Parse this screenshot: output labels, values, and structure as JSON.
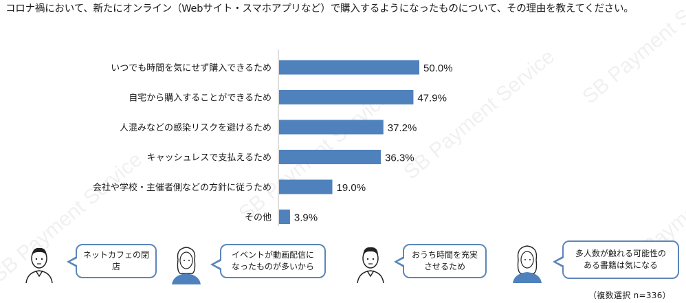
{
  "watermark_text": "SB Payment Service",
  "question": "コロナ禍において、新たにオンライン（Webサイト・スマホアプリなど）で購入するようになったものについて、その理由を教えてください。",
  "chart_data": {
    "type": "bar",
    "orientation": "horizontal",
    "title": "",
    "categories": [
      "いつでも時間を気にせず購入できるため",
      "自宅から購入することができるため",
      "人混みなどの感染リスクを避けるため",
      "キャッシュレスで支払えるため",
      "会社や学校・主催者側などの方針に従うため",
      "その他"
    ],
    "values": [
      50.0,
      47.9,
      37.2,
      36.3,
      19.0,
      3.9
    ],
    "value_labels": [
      "50.0%",
      "47.9%",
      "37.2%",
      "36.3%",
      "19.0%",
      "3.9%"
    ],
    "unit": "%",
    "xlim": [
      0,
      100
    ],
    "bar_color": "#4f81bd",
    "grid": false
  },
  "comments": [
    {
      "text": "ネットカフェの閉店"
    },
    {
      "text": "イベントが動画配信に\nなったものが多いから"
    },
    {
      "text": "おうち時間を充実\nさせるため"
    },
    {
      "text": "多人数が触れる可能性の\nある書籍は気になる"
    }
  ],
  "note": "（複数選択 n=336）",
  "colors": {
    "accent": "#5b86b8",
    "person_shirt": "#4f81bd"
  }
}
